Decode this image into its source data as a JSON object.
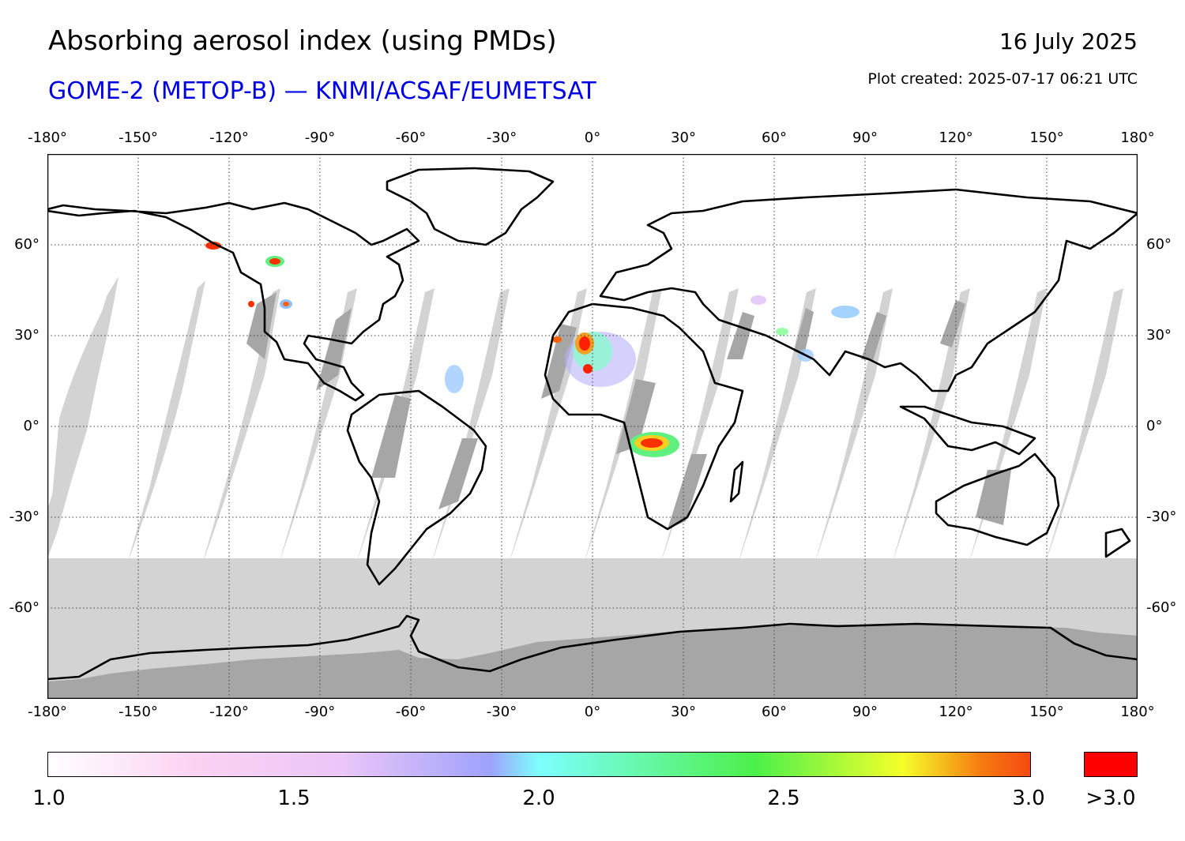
{
  "header": {
    "title": "Absorbing aerosol index (using PMDs)",
    "subtitle": "GOME-2 (METOP-B) — KNMI/ACSAF/EUMETSAT",
    "date": "16 July 2025",
    "plot_created": "Plot created: 2025-07-17 06:21 UTC"
  },
  "axes": {
    "longitude_labels": [
      "-180°",
      "-150°",
      "-120°",
      "-90°",
      "-60°",
      "-30°",
      "0°",
      "30°",
      "60°",
      "90°",
      "120°",
      "150°",
      "180°"
    ],
    "latitude_labels": [
      "60°",
      "30°",
      "0°",
      "-30°",
      "-60°"
    ],
    "lon_range": [
      -180,
      180
    ],
    "lat_range": [
      -90,
      90
    ],
    "gridlines": true
  },
  "colorbar": {
    "tick_labels": [
      "1.0",
      "1.5",
      "2.0",
      "2.5",
      "3.0"
    ],
    "overflow_label": ">3.0",
    "range": [
      1.0,
      3.0
    ],
    "overflow_color": "#ff0000",
    "no_data_color": "#d3d3d3",
    "night_gap_color": "#a6a6a6"
  },
  "map_colors": {
    "land_outline": "#000000",
    "grid": "#404040"
  }
}
